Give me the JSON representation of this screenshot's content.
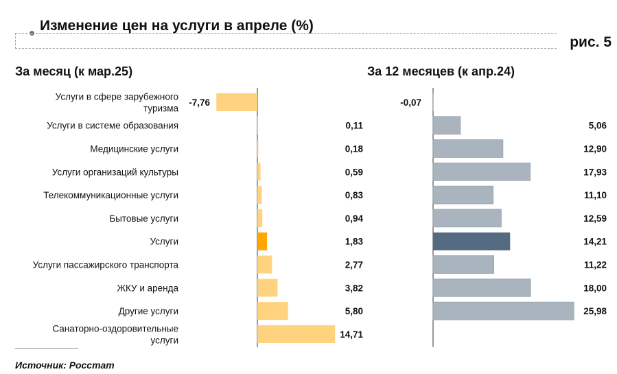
{
  "header": {
    "title": "Изменение цен на услуги в апреле (%)",
    "figure_label": "рис. 5"
  },
  "source": "Источник: Росстат",
  "colors": {
    "monthly_bar": "#FFD27F",
    "monthly_highlight": "#FFA500",
    "yearly_bar": "#A9B4BE",
    "yearly_highlight": "#536A80",
    "axis": "#333333"
  },
  "chart_data": [
    {
      "type": "bar",
      "orientation": "horizontal",
      "title": "За месяц (к мар.25)",
      "categories": [
        "Услуги в сфере зарубежного туризма",
        "Услуги в системе образования",
        "Медицинские услуги",
        "Услуги организаций культуры",
        "Телекоммуникационные услуги",
        "Бытовые услуги",
        "Услуги",
        "Услуги пассажирского транспорта",
        "ЖКУ и аренда",
        "Другие услуги",
        "Санаторно-оздоровительные услуги"
      ],
      "values": [
        -7.76,
        0.11,
        0.18,
        0.59,
        0.83,
        0.94,
        1.83,
        2.77,
        3.82,
        5.8,
        14.71
      ],
      "value_labels": [
        "-7,76",
        "0,11",
        "0,18",
        "0,59",
        "0,83",
        "0,94",
        "1,83",
        "2,77",
        "3,82",
        "5,80",
        "14,71"
      ],
      "highlight_category": "Услуги",
      "grid": false
    },
    {
      "type": "bar",
      "orientation": "horizontal",
      "title": "За 12 месяцев (к апр.24)",
      "categories": [
        "Услуги в сфере зарубежного туризма",
        "Услуги в системе образования",
        "Медицинские услуги",
        "Услуги организаций культуры",
        "Телекоммуникационные услуги",
        "Бытовые услуги",
        "Услуги",
        "Услуги пассажирского транспорта",
        "ЖКУ и аренда",
        "Другие услуги",
        "Санаторно-оздоровительные услуги"
      ],
      "values": [
        -0.07,
        5.06,
        12.9,
        17.93,
        11.1,
        12.59,
        14.21,
        11.22,
        18.0,
        25.98,
        null
      ],
      "value_labels": [
        "-0,07",
        "5,06",
        "12,90",
        "17,93",
        "11,10",
        "12,59",
        "14,21",
        "11,22",
        "18,00",
        "25,98",
        ""
      ],
      "highlight_category": "Услуги",
      "grid": false
    }
  ],
  "category_label_lines": [
    [
      "Услуги в сфере зарубежного",
      "туризма"
    ],
    [
      "Услуги в системе образования"
    ],
    [
      "Медицинские услуги"
    ],
    [
      "Услуги организаций культуры"
    ],
    [
      "Телекоммуникационные услуги"
    ],
    [
      "Бытовые услуги"
    ],
    [
      "Услуги"
    ],
    [
      "Услуги пассажирского транспорта"
    ],
    [
      "ЖКУ и аренда"
    ],
    [
      "Другие услуги"
    ],
    [
      "Санаторно-оздоровительные",
      "услуги"
    ]
  ]
}
